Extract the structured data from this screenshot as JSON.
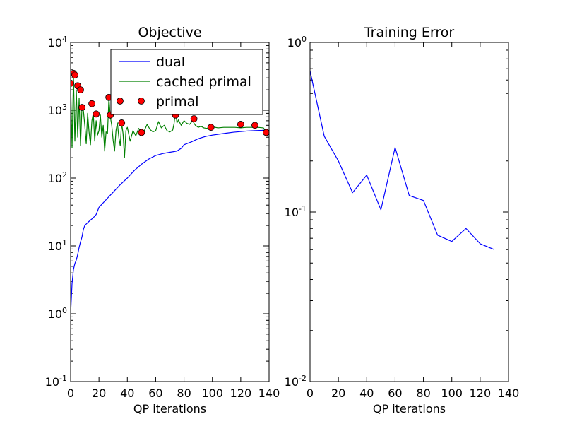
{
  "chart_data": [
    {
      "type": "line",
      "title": "Objective",
      "xlabel": "QP iterations",
      "ylabel": "",
      "yscale": "log",
      "xlim": [
        0,
        140
      ],
      "ylim": [
        0.1,
        10000
      ],
      "xticks": [
        "0",
        "20",
        "40",
        "60",
        "80",
        "100",
        "120",
        "140"
      ],
      "ytick_bases": [
        "10",
        "10",
        "10",
        "10",
        "10",
        "10"
      ],
      "ytick_exps": [
        "-1",
        "0",
        "1",
        "2",
        "3",
        "4"
      ],
      "legend_position": "top-right",
      "colors": {
        "dual": "#0000ff",
        "cached_primal": "#008000",
        "primal": "#ff0000"
      },
      "series": [
        {
          "name": "dual",
          "style": "line",
          "x": [
            0,
            1,
            2,
            3,
            4,
            5,
            6,
            7,
            8,
            9,
            10,
            12,
            14,
            16,
            18,
            20,
            25,
            30,
            35,
            40,
            45,
            50,
            55,
            60,
            65,
            70,
            75,
            78,
            80,
            85,
            90,
            95,
            100,
            105,
            110,
            115,
            120,
            125,
            130,
            135,
            138
          ],
          "y": [
            1,
            2.8,
            4.5,
            5.5,
            6.2,
            7.5,
            9.5,
            11.5,
            13.5,
            17.5,
            20,
            22,
            24,
            26,
            29,
            37,
            48,
            62,
            80,
            100,
            130,
            160,
            190,
            215,
            230,
            240,
            250,
            275,
            310,
            340,
            380,
            410,
            430,
            445,
            460,
            475,
            485,
            495,
            500,
            505,
            510
          ]
        },
        {
          "name": "cached primal",
          "style": "line",
          "x": [
            0,
            1,
            2,
            3,
            4,
            5,
            6,
            7,
            8,
            9,
            10,
            11,
            12,
            13,
            14,
            15,
            16,
            17,
            18,
            19,
            20,
            21,
            22,
            23,
            24,
            25,
            26,
            27,
            28,
            29,
            30,
            31,
            32,
            33,
            34,
            35,
            36,
            37,
            38,
            39,
            40,
            42,
            44,
            46,
            48,
            50,
            52,
            54,
            56,
            58,
            60,
            62,
            64,
            66,
            68,
            70,
            72,
            73,
            74,
            75,
            76,
            78,
            80,
            82,
            84,
            86,
            88,
            90,
            92,
            94,
            96,
            98,
            100,
            104,
            108,
            112,
            116,
            120,
            124,
            128,
            132,
            136,
            138
          ],
          "y": [
            2500,
            280,
            3300,
            350,
            2000,
            400,
            1500,
            300,
            1100,
            1000,
            600,
            320,
            900,
            480,
            310,
            700,
            900,
            350,
            700,
            430,
            500,
            850,
            400,
            600,
            250,
            480,
            450,
            1500,
            800,
            600,
            360,
            250,
            500,
            650,
            400,
            300,
            650,
            450,
            200,
            500,
            560,
            350,
            500,
            420,
            540,
            480,
            500,
            620,
            520,
            480,
            500,
            680,
            550,
            600,
            500,
            480,
            510,
            640,
            1000,
            650,
            720,
            600,
            700,
            640,
            620,
            700,
            600,
            560,
            580,
            550,
            540,
            560,
            570,
            550,
            560,
            560,
            560,
            550,
            560,
            560,
            560,
            550,
            480
          ]
        },
        {
          "name": "primal",
          "style": "marker",
          "x": [
            0,
            2,
            3,
            5,
            7,
            8,
            15,
            18,
            27,
            28,
            36,
            50,
            62,
            74,
            87,
            99,
            120,
            130,
            138
          ],
          "y": [
            2500,
            3500,
            3300,
            2300,
            2000,
            1100,
            1250,
            880,
            1550,
            850,
            650,
            470,
            1500,
            850,
            750,
            560,
            620,
            600,
            470
          ]
        }
      ]
    },
    {
      "type": "line",
      "title": "Training Error",
      "xlabel": "QP iterations",
      "ylabel": "",
      "yscale": "log",
      "xlim": [
        0,
        140
      ],
      "ylim": [
        0.01,
        1
      ],
      "xticks": [
        "0",
        "20",
        "40",
        "60",
        "80",
        "100",
        "120",
        "140"
      ],
      "ytick_bases": [
        "10",
        "10",
        "10"
      ],
      "ytick_exps": [
        "-2",
        "-1",
        "0"
      ],
      "colors": {
        "line": "#0000ff"
      },
      "series": [
        {
          "style": "line",
          "x": [
            0,
            10,
            20,
            30,
            40,
            50,
            60,
            70,
            80,
            90,
            100,
            110,
            120,
            130
          ],
          "y": [
            0.68,
            0.28,
            0.2,
            0.13,
            0.165,
            0.103,
            0.24,
            0.125,
            0.117,
            0.073,
            0.067,
            0.08,
            0.065,
            0.06
          ]
        }
      ]
    }
  ]
}
